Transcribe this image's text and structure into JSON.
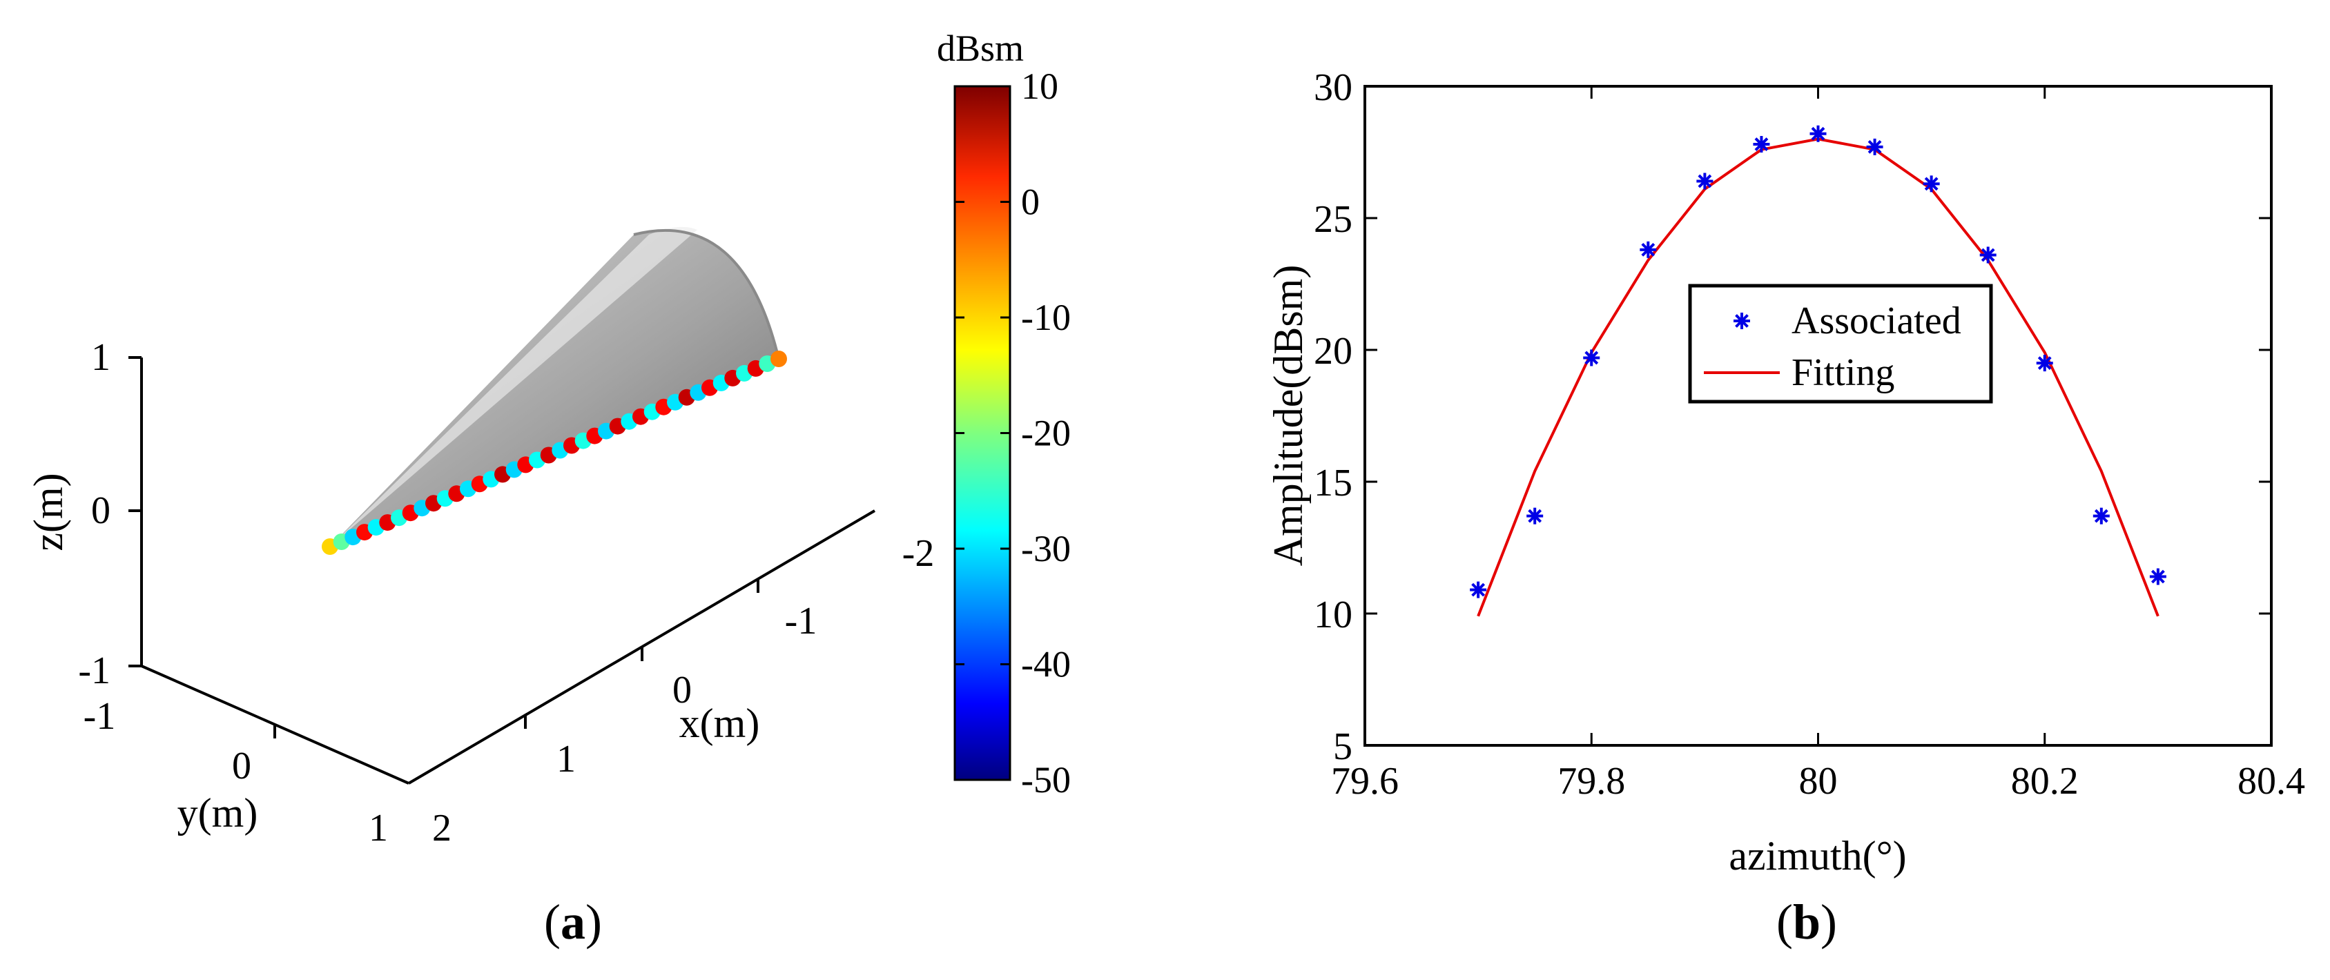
{
  "panels": {
    "a": {
      "caption_open": "(",
      "caption_letter": "a",
      "caption_close": ")"
    },
    "b": {
      "caption_open": "(",
      "caption_letter": "b",
      "caption_close": ")"
    }
  },
  "colors": {
    "cone_light": "#d8d8d8",
    "cone_mid": "#a3a3a3",
    "cone_dark": "#6e6e6e",
    "scatter_marker": "#0000e6",
    "fit_line": "#e60000"
  },
  "chart_data": [
    {
      "type": "scatter3d",
      "panel": "a",
      "title": "",
      "object": "cone",
      "xlabel": "x(m)",
      "ylabel": "y(m)",
      "zlabel": "z(m)",
      "x_ticks": [
        -2,
        -1,
        0,
        1,
        2
      ],
      "x_tick_labels": [
        "-2",
        "-1",
        "0",
        "1",
        "2"
      ],
      "y_ticks": [
        -1,
        0,
        1
      ],
      "y_tick_labels": [
        "-1",
        "0",
        "1"
      ],
      "z_ticks": [
        -1,
        0,
        1
      ],
      "z_tick_labels": [
        "-1",
        "0",
        "1"
      ],
      "scatter_count": 40,
      "scatter_values_dBsm": [
        -10,
        -22,
        -30,
        2,
        -28,
        4,
        -26,
        3,
        -30,
        5,
        -27,
        4,
        -29,
        2,
        -28,
        6,
        -30,
        3,
        -27,
        5,
        -29,
        4,
        -26,
        3,
        -30,
        5,
        -28,
        4,
        -27,
        2,
        -29,
        6,
        -30,
        3,
        -28,
        5,
        -26,
        4,
        -24,
        -5
      ],
      "colorbar": {
        "title": "dBsm",
        "range": [
          -50,
          10
        ],
        "ticks": [
          10,
          0,
          -10,
          -20,
          -30,
          -40,
          -50
        ],
        "tick_labels": [
          "10",
          "0",
          "-10",
          "-20",
          "-30",
          "-40",
          "-50"
        ],
        "colormap": "jet"
      }
    },
    {
      "type": "scatter+line",
      "panel": "b",
      "title": "",
      "xlabel": "azimuth(°)",
      "ylabel": "Amplitude(dBsm)",
      "xlim": [
        79.6,
        80.4
      ],
      "ylim": [
        5,
        30
      ],
      "x_ticks": [
        79.6,
        79.8,
        80,
        80.2,
        80.4
      ],
      "x_tick_labels": [
        "79.6",
        "79.8",
        "80",
        "80.2",
        "80.4"
      ],
      "y_ticks": [
        5,
        10,
        15,
        20,
        25,
        30
      ],
      "y_tick_labels": [
        "5",
        "10",
        "15",
        "20",
        "25",
        "30"
      ],
      "legend_position": "center",
      "series": [
        {
          "name": "Associated",
          "style": "markers",
          "marker": "*",
          "x": [
            79.7,
            79.75,
            79.8,
            79.85,
            79.9,
            79.95,
            80.0,
            80.05,
            80.1,
            80.15,
            80.2,
            80.25,
            80.3
          ],
          "y": [
            10.9,
            13.7,
            19.7,
            23.8,
            26.4,
            27.8,
            28.2,
            27.7,
            26.3,
            23.6,
            19.5,
            13.7,
            11.4
          ]
        },
        {
          "name": "Fitting",
          "style": "line",
          "x": [
            79.7,
            79.75,
            79.8,
            79.85,
            79.9,
            79.95,
            80.0,
            80.05,
            80.1,
            80.15,
            80.2,
            80.25,
            80.3
          ],
          "y": [
            9.9,
            15.4,
            19.9,
            23.4,
            26.1,
            27.6,
            28.0,
            27.6,
            26.1,
            23.4,
            19.9,
            15.4,
            9.9
          ]
        }
      ]
    }
  ]
}
